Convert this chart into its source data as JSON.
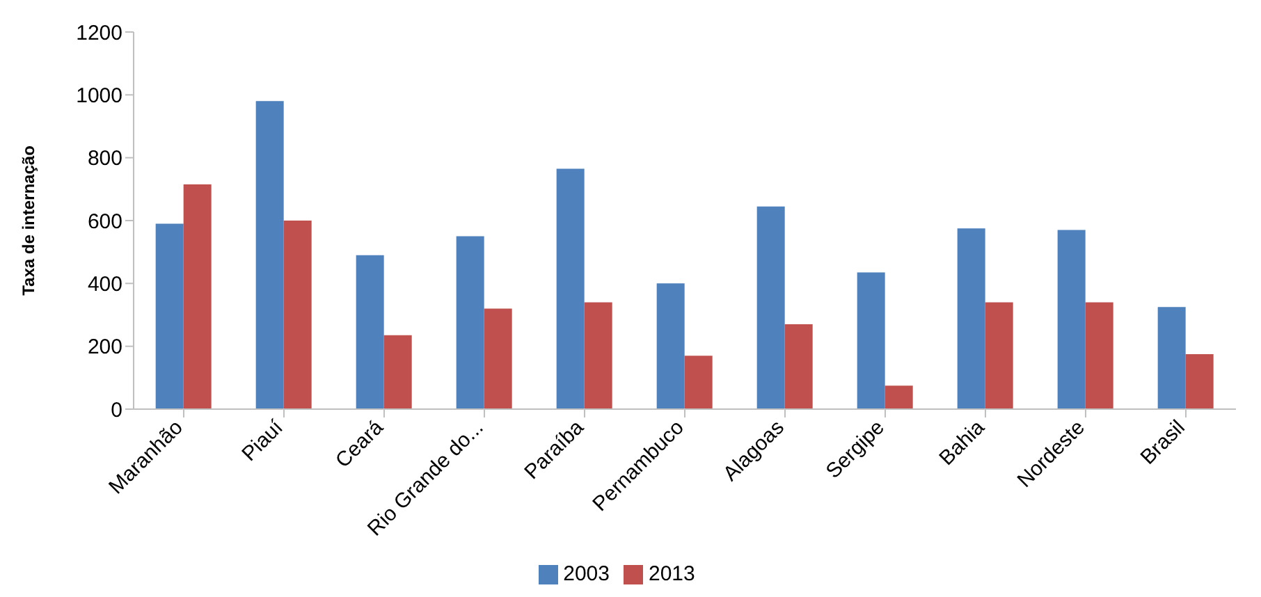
{
  "chart_data": {
    "type": "bar",
    "ylabel": "Taxa de internação",
    "categories": [
      "Maranhão",
      "Piauí",
      "Ceará",
      "Rio Grande do...",
      "Paraíba",
      "Pernambuco",
      "Alagoas",
      "Sergipe",
      "Bahia",
      "Nordeste",
      "Brasil"
    ],
    "series": [
      {
        "name": "2003",
        "color": "#4f81bd",
        "values": [
          590,
          980,
          490,
          550,
          765,
          400,
          645,
          435,
          575,
          570,
          325
        ]
      },
      {
        "name": "2013",
        "color": "#c0504d",
        "values": [
          715,
          600,
          235,
          320,
          340,
          170,
          270,
          75,
          340,
          340,
          175
        ]
      }
    ],
    "ylim": [
      0,
      1200
    ],
    "yticks": [
      0,
      200,
      400,
      600,
      800,
      1000,
      1200
    ],
    "grid": false,
    "legend": "bottom"
  }
}
